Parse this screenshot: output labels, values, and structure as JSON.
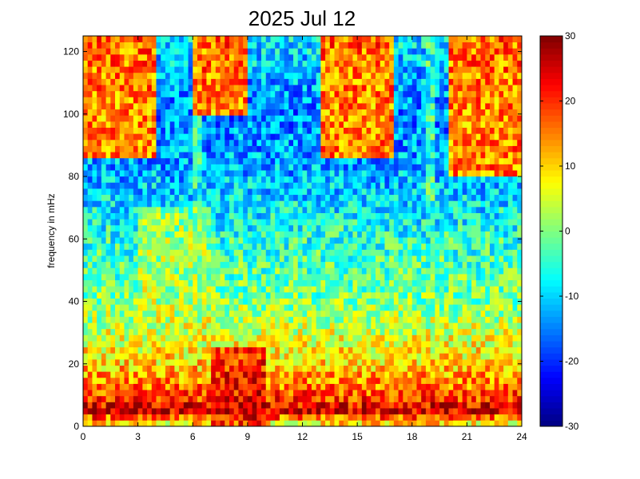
{
  "chart_data": {
    "type": "heatmap",
    "title": "2025 Jul 12",
    "xlabel": "",
    "ylabel": "frequency in mHz",
    "xlim": [
      0,
      24
    ],
    "ylim": [
      0,
      125
    ],
    "x_ticks": [
      0,
      3,
      6,
      9,
      12,
      15,
      18,
      21,
      24
    ],
    "y_ticks": [
      0,
      20,
      40,
      60,
      80,
      100,
      120
    ],
    "colorbar": {
      "colormap": "jet",
      "range": [
        -30,
        30
      ],
      "ticks": [
        -30,
        -20,
        -10,
        0,
        10,
        20,
        30
      ]
    },
    "grid": false,
    "time_bins": 96,
    "frequency_bins": 64,
    "low_frequency_profile": {
      "frequency": [
        0,
        5,
        10,
        20,
        40,
        60,
        80,
        100,
        120,
        125
      ],
      "level": [
        5,
        25,
        18,
        10,
        0,
        -5,
        -12,
        -15,
        -10,
        -8
      ]
    },
    "energetic_regions": [
      {
        "time": [
          0.5,
          1.0
        ],
        "frequency": [
          0,
          10
        ],
        "level": 25
      },
      {
        "time": [
          3,
          7
        ],
        "frequency": [
          30,
          70
        ],
        "level": 5
      },
      {
        "time": [
          7,
          10
        ],
        "frequency": [
          0,
          25
        ],
        "level": 25
      },
      {
        "time": [
          0,
          4
        ],
        "frequency": [
          85,
          125
        ],
        "level": 30
      },
      {
        "time": [
          6,
          9
        ],
        "frequency": [
          100,
          125
        ],
        "level": 30
      },
      {
        "time": [
          13,
          17
        ],
        "frequency": [
          85,
          125
        ],
        "level": 30
      },
      {
        "time": [
          20,
          24
        ],
        "frequency": [
          80,
          125
        ],
        "level": 30
      }
    ],
    "vertical_streaks": [
      6.2,
      19.0
    ]
  }
}
